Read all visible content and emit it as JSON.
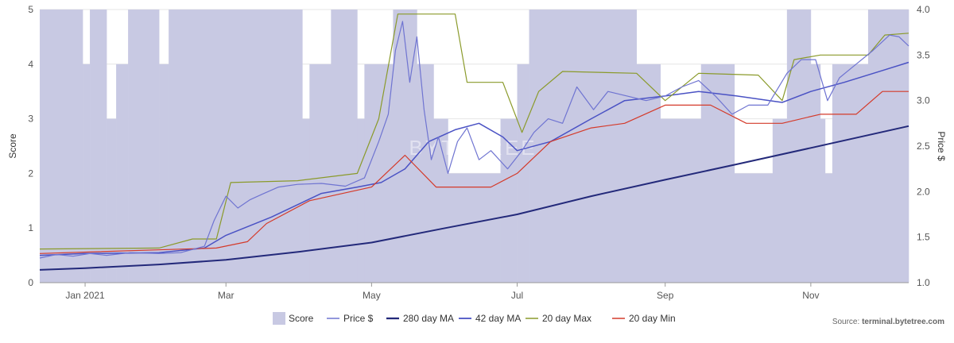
{
  "chart_data": {
    "type": "line",
    "watermark": "BYTETREE",
    "source_label": "Source: ",
    "source_site": "terminal.bytetree.com",
    "legend_position": "bottom",
    "grid": true,
    "x_axis": {
      "start": "2020-12-13",
      "end": "2021-12-12",
      "ticks": [
        {
          "date": "2021-01-01",
          "label": "Jan 2021"
        },
        {
          "date": "2021-03-01",
          "label": "Mar"
        },
        {
          "date": "2021-05-01",
          "label": "May"
        },
        {
          "date": "2021-07-01",
          "label": "Jul"
        },
        {
          "date": "2021-09-01",
          "label": "Sep"
        },
        {
          "date": "2021-11-01",
          "label": "Nov"
        }
      ]
    },
    "y_left": {
      "label": "Score",
      "min": 0,
      "max": 5,
      "ticks": [
        0,
        1,
        2,
        3,
        4,
        5
      ]
    },
    "y_right": {
      "label": "Price $",
      "min": 1.0,
      "max": 4.0,
      "ticks": [
        "1.0",
        "1.5",
        "2.0",
        "2.5",
        "3.0",
        "3.5",
        "4.0"
      ]
    },
    "series": [
      {
        "name": "Score",
        "kind": "column",
        "axis": "left",
        "color": "#c8c9e3",
        "points": [
          [
            "2020-12-13",
            5
          ],
          [
            "2020-12-31",
            4
          ],
          [
            "2021-01-03",
            5
          ],
          [
            "2021-01-10",
            3
          ],
          [
            "2021-01-14",
            4
          ],
          [
            "2021-01-19",
            5
          ],
          [
            "2021-02-01",
            4
          ],
          [
            "2021-02-05",
            5
          ],
          [
            "2021-04-02",
            3
          ],
          [
            "2021-04-05",
            4
          ],
          [
            "2021-04-14",
            5
          ],
          [
            "2021-04-25",
            3
          ],
          [
            "2021-04-28",
            4
          ],
          [
            "2021-05-10",
            5
          ],
          [
            "2021-05-20",
            4
          ],
          [
            "2021-05-27",
            3
          ],
          [
            "2021-06-02",
            2
          ],
          [
            "2021-06-24",
            3
          ],
          [
            "2021-07-01",
            4
          ],
          [
            "2021-07-06",
            5
          ],
          [
            "2021-08-20",
            4
          ],
          [
            "2021-08-30",
            3
          ],
          [
            "2021-09-16",
            4
          ],
          [
            "2021-09-30",
            2
          ],
          [
            "2021-10-16",
            3
          ],
          [
            "2021-10-22",
            5
          ],
          [
            "2021-11-01",
            4
          ],
          [
            "2021-11-05",
            3
          ],
          [
            "2021-11-07",
            2
          ],
          [
            "2021-11-10",
            4
          ],
          [
            "2021-11-25",
            5
          ]
        ]
      },
      {
        "name": "Price $",
        "kind": "line",
        "axis": "right",
        "color": "#6f74d1",
        "width": 1.2,
        "points": [
          [
            "2020-12-13",
            1.27
          ],
          [
            "2020-12-20",
            1.31
          ],
          [
            "2020-12-27",
            1.29
          ],
          [
            "2021-01-03",
            1.32
          ],
          [
            "2021-01-10",
            1.3
          ],
          [
            "2021-01-20",
            1.33
          ],
          [
            "2021-02-01",
            1.32
          ],
          [
            "2021-02-10",
            1.33
          ],
          [
            "2021-02-20",
            1.4
          ],
          [
            "2021-02-24",
            1.68
          ],
          [
            "2021-03-01",
            1.95
          ],
          [
            "2021-03-06",
            1.82
          ],
          [
            "2021-03-11",
            1.91
          ],
          [
            "2021-03-16",
            1.97
          ],
          [
            "2021-03-23",
            2.05
          ],
          [
            "2021-03-31",
            2.08
          ],
          [
            "2021-04-10",
            2.09
          ],
          [
            "2021-04-20",
            2.06
          ],
          [
            "2021-04-28",
            2.15
          ],
          [
            "2021-05-04",
            2.55
          ],
          [
            "2021-05-08",
            2.85
          ],
          [
            "2021-05-11",
            3.55
          ],
          [
            "2021-05-14",
            3.87
          ],
          [
            "2021-05-17",
            3.2
          ],
          [
            "2021-05-20",
            3.7
          ],
          [
            "2021-05-23",
            2.9
          ],
          [
            "2021-05-26",
            2.35
          ],
          [
            "2021-05-29",
            2.6
          ],
          [
            "2021-06-02",
            2.2
          ],
          [
            "2021-06-06",
            2.55
          ],
          [
            "2021-06-10",
            2.7
          ],
          [
            "2021-06-15",
            2.35
          ],
          [
            "2021-06-20",
            2.45
          ],
          [
            "2021-06-27",
            2.25
          ],
          [
            "2021-07-03",
            2.45
          ],
          [
            "2021-07-08",
            2.65
          ],
          [
            "2021-07-14",
            2.8
          ],
          [
            "2021-07-20",
            2.75
          ],
          [
            "2021-07-26",
            3.15
          ],
          [
            "2021-08-02",
            2.9
          ],
          [
            "2021-08-08",
            3.1
          ],
          [
            "2021-08-16",
            3.05
          ],
          [
            "2021-08-24",
            3.0
          ],
          [
            "2021-09-01",
            3.05
          ],
          [
            "2021-09-08",
            3.15
          ],
          [
            "2021-09-15",
            3.22
          ],
          [
            "2021-09-22",
            3.05
          ],
          [
            "2021-09-29",
            2.85
          ],
          [
            "2021-10-06",
            2.95
          ],
          [
            "2021-10-14",
            2.95
          ],
          [
            "2021-10-22",
            3.3
          ],
          [
            "2021-10-28",
            3.45
          ],
          [
            "2021-11-03",
            3.45
          ],
          [
            "2021-11-08",
            3.0
          ],
          [
            "2021-11-13",
            3.25
          ],
          [
            "2021-11-20",
            3.4
          ],
          [
            "2021-11-27",
            3.55
          ],
          [
            "2021-12-04",
            3.72
          ],
          [
            "2021-12-08",
            3.7
          ],
          [
            "2021-12-12",
            3.6
          ]
        ]
      },
      {
        "name": "280 day MA",
        "kind": "line",
        "axis": "right",
        "color": "#23297a",
        "width": 2,
        "points": [
          [
            "2020-12-13",
            1.14
          ],
          [
            "2021-01-01",
            1.16
          ],
          [
            "2021-02-01",
            1.2
          ],
          [
            "2021-03-01",
            1.25
          ],
          [
            "2021-04-01",
            1.34
          ],
          [
            "2021-05-01",
            1.44
          ],
          [
            "2021-06-01",
            1.6
          ],
          [
            "2021-07-01",
            1.75
          ],
          [
            "2021-08-01",
            1.95
          ],
          [
            "2021-09-01",
            2.13
          ],
          [
            "2021-10-01",
            2.3
          ],
          [
            "2021-11-01",
            2.48
          ],
          [
            "2021-12-12",
            2.72
          ]
        ]
      },
      {
        "name": "42 day MA",
        "kind": "line",
        "axis": "right",
        "color": "#4a52c4",
        "width": 1.5,
        "points": [
          [
            "2020-12-13",
            1.3
          ],
          [
            "2021-01-01",
            1.32
          ],
          [
            "2021-02-01",
            1.33
          ],
          [
            "2021-02-20",
            1.38
          ],
          [
            "2021-03-01",
            1.52
          ],
          [
            "2021-03-20",
            1.72
          ],
          [
            "2021-04-10",
            1.98
          ],
          [
            "2021-04-25",
            2.05
          ],
          [
            "2021-05-05",
            2.1
          ],
          [
            "2021-05-15",
            2.25
          ],
          [
            "2021-05-25",
            2.55
          ],
          [
            "2021-06-05",
            2.68
          ],
          [
            "2021-06-15",
            2.75
          ],
          [
            "2021-06-25",
            2.6
          ],
          [
            "2021-07-01",
            2.45
          ],
          [
            "2021-07-15",
            2.55
          ],
          [
            "2021-08-01",
            2.8
          ],
          [
            "2021-08-15",
            3.0
          ],
          [
            "2021-09-01",
            3.05
          ],
          [
            "2021-09-15",
            3.1
          ],
          [
            "2021-10-01",
            3.05
          ],
          [
            "2021-10-20",
            2.98
          ],
          [
            "2021-11-01",
            3.1
          ],
          [
            "2021-11-15",
            3.2
          ],
          [
            "2021-12-01",
            3.33
          ],
          [
            "2021-12-12",
            3.42
          ]
        ]
      },
      {
        "name": "20 day Max",
        "kind": "line",
        "axis": "right",
        "color": "#8a9a2a",
        "width": 1.2,
        "points": [
          [
            "2020-12-13",
            1.37
          ],
          [
            "2021-02-01",
            1.38
          ],
          [
            "2021-02-15",
            1.48
          ],
          [
            "2021-02-25",
            1.48
          ],
          [
            "2021-03-03",
            2.1
          ],
          [
            "2021-03-31",
            2.12
          ],
          [
            "2021-04-25",
            2.2
          ],
          [
            "2021-05-04",
            2.8
          ],
          [
            "2021-05-12",
            3.95
          ],
          [
            "2021-06-05",
            3.95
          ],
          [
            "2021-06-10",
            3.2
          ],
          [
            "2021-06-25",
            3.2
          ],
          [
            "2021-07-03",
            2.65
          ],
          [
            "2021-07-10",
            3.1
          ],
          [
            "2021-07-20",
            3.32
          ],
          [
            "2021-08-20",
            3.3
          ],
          [
            "2021-09-01",
            3.0
          ],
          [
            "2021-09-15",
            3.3
          ],
          [
            "2021-10-10",
            3.28
          ],
          [
            "2021-10-20",
            3.0
          ],
          [
            "2021-10-25",
            3.45
          ],
          [
            "2021-11-05",
            3.5
          ],
          [
            "2021-11-25",
            3.5
          ],
          [
            "2021-12-02",
            3.72
          ],
          [
            "2021-12-12",
            3.74
          ]
        ]
      },
      {
        "name": "20 day Min",
        "kind": "line",
        "axis": "right",
        "color": "#d43a2a",
        "width": 1.2,
        "points": [
          [
            "2020-12-13",
            1.32
          ],
          [
            "2021-02-25",
            1.38
          ],
          [
            "2021-03-10",
            1.45
          ],
          [
            "2021-03-18",
            1.65
          ],
          [
            "2021-04-05",
            1.9
          ],
          [
            "2021-05-01",
            2.05
          ],
          [
            "2021-05-15",
            2.4
          ],
          [
            "2021-05-28",
            2.05
          ],
          [
            "2021-06-20",
            2.05
          ],
          [
            "2021-07-01",
            2.2
          ],
          [
            "2021-07-15",
            2.55
          ],
          [
            "2021-08-01",
            2.7
          ],
          [
            "2021-08-15",
            2.75
          ],
          [
            "2021-09-01",
            2.95
          ],
          [
            "2021-09-20",
            2.95
          ],
          [
            "2021-10-05",
            2.75
          ],
          [
            "2021-10-20",
            2.75
          ],
          [
            "2021-11-05",
            2.85
          ],
          [
            "2021-11-20",
            2.85
          ],
          [
            "2021-12-01",
            3.1
          ],
          [
            "2021-12-12",
            3.1
          ]
        ]
      }
    ]
  }
}
